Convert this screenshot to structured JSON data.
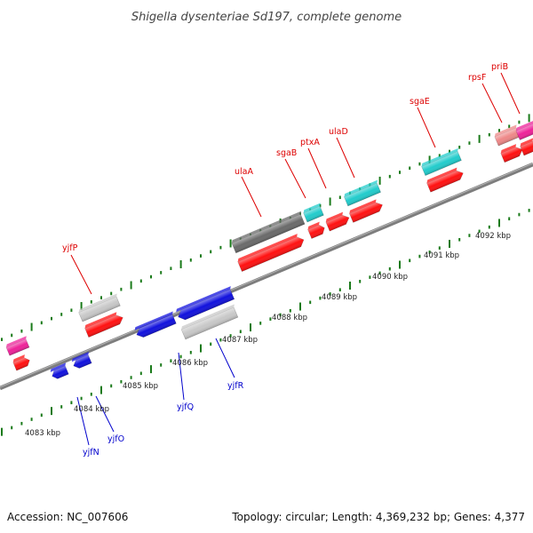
{
  "title": "Shigella dysenteriae Sd197, complete genome",
  "footer": {
    "accession": "Accession: NC_007606",
    "topology": "Topology: circular; Length: 4,369,232 bp; Genes: 4,377"
  },
  "scale_labels": [
    "4083 kbp",
    "4084 kbp",
    "4085 kbp",
    "4086 kbp",
    "4087 kbp",
    "4088 kbp",
    "4089 kbp",
    "4090 kbp",
    "4091 kbp",
    "4092 kbp"
  ],
  "gene_labels": {
    "forward": [
      "yjfP",
      "ulaA",
      "sgaB",
      "ptxA",
      "ulaD",
      "sgaE",
      "rpsF",
      "priB"
    ],
    "reverse": [
      "yjfN",
      "yjfO",
      "yjfQ",
      "yjfR"
    ]
  },
  "colors": {
    "forward_label": "#dd0000",
    "reverse_label": "#0000cc",
    "tick": "#1a7a1a",
    "backbone": "#808080",
    "gene_red": "#ff1111",
    "gene_blue": "#1111dd",
    "gene_cyan": "#22cccc",
    "gene_grey": "#c8c8c8",
    "gene_darkgrey": "#6a6a6a",
    "gene_magenta": "#ee2299",
    "gene_pink": "#ee8888"
  }
}
